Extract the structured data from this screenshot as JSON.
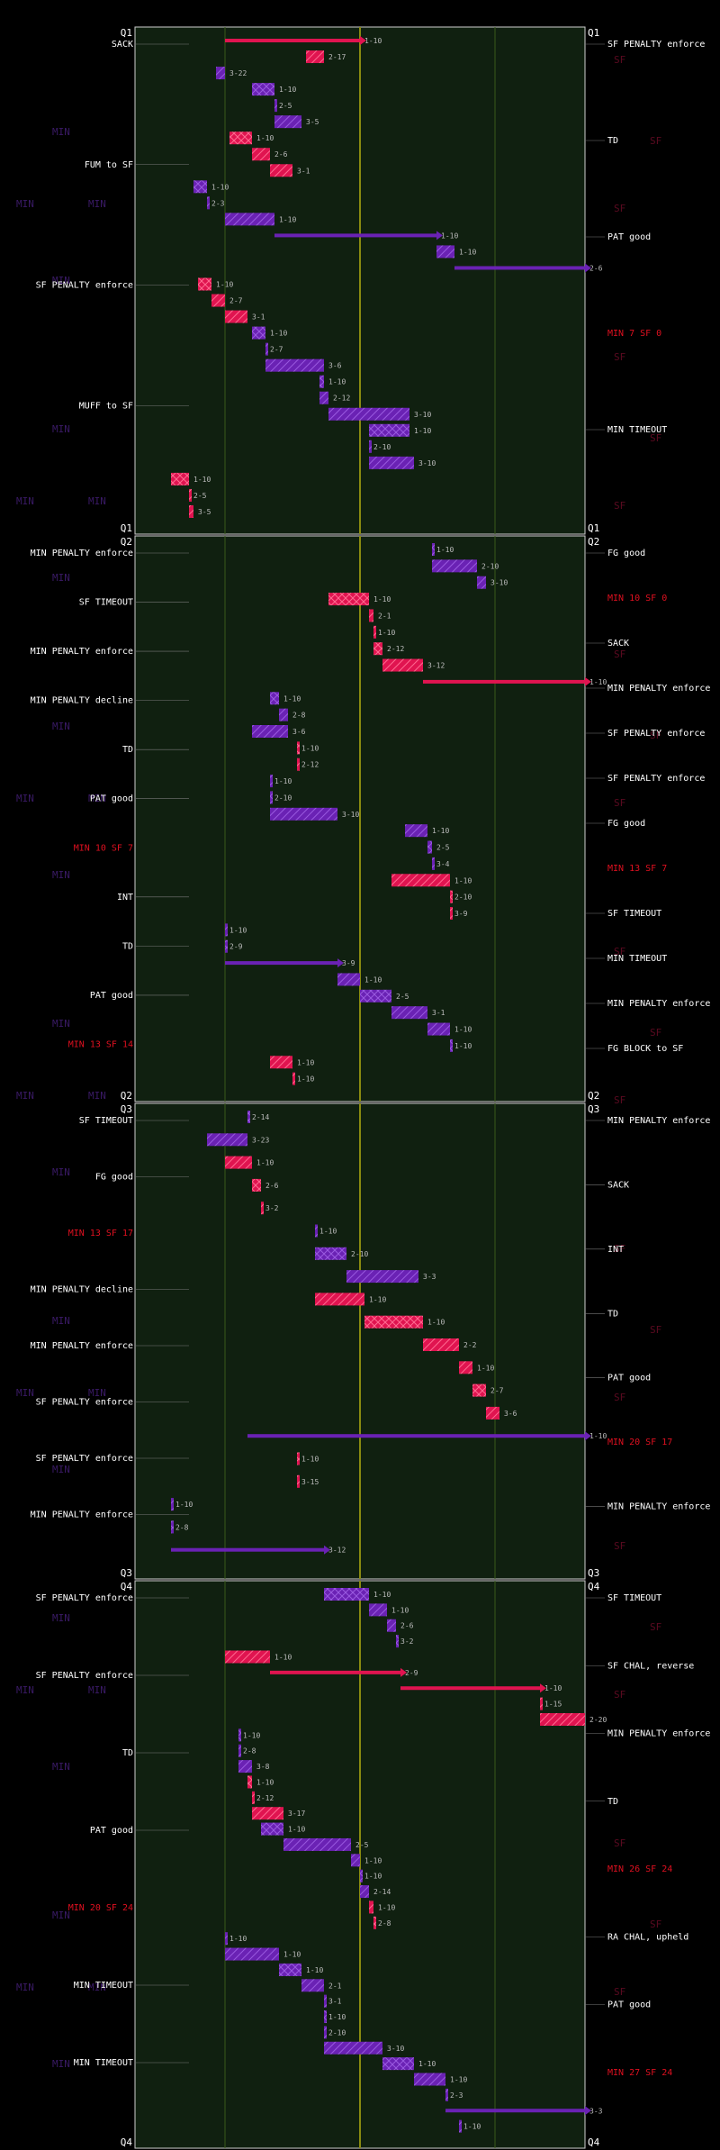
{
  "colors": {
    "background": "#000000",
    "field": "#102010",
    "min": "#6a22b4",
    "sf": "#e01450",
    "min_dim": "#3a1a66",
    "sf_dim": "#7a1030",
    "midfield_line": "#8a8a10",
    "yard_line": "#3a5a1a",
    "border": "#cfcfcf",
    "label": "#ffffff",
    "score_red": "#e01020",
    "ghost_min": "#3a1a66",
    "ghost_sf": "#5a0a20"
  },
  "quarters": [
    "Q1",
    "Q2",
    "Q3",
    "Q4"
  ],
  "ghost_labels": {
    "min": "MIN",
    "sf": "SF"
  },
  "events": [
    {
      "q": 0,
      "side": "left",
      "text": "SACK"
    },
    {
      "q": 0,
      "side": "left",
      "text": "FUM to SF"
    },
    {
      "q": 0,
      "side": "left",
      "text": "SF PENALTY enforce"
    },
    {
      "q": 0,
      "side": "right",
      "text": "SF PENALTY enforce"
    },
    {
      "q": 0,
      "side": "right",
      "text": "TD"
    },
    {
      "q": 0,
      "side": "right",
      "text": "PAT good"
    },
    {
      "q": 0,
      "side": "right",
      "text": "MIN 7 SF 0",
      "score": true
    },
    {
      "q": 0,
      "side": "left",
      "text": "MUFF to SF"
    },
    {
      "q": 0,
      "side": "right",
      "text": "MIN TIMEOUT"
    },
    {
      "q": 1,
      "side": "right",
      "text": "FG good"
    },
    {
      "q": 1,
      "side": "right",
      "text": "MIN 10 SF 0",
      "score": true
    },
    {
      "q": 1,
      "side": "left",
      "text": "MIN PENALTY enforce"
    },
    {
      "q": 1,
      "side": "left",
      "text": "SF TIMEOUT"
    },
    {
      "q": 1,
      "side": "left",
      "text": "MIN PENALTY enforce"
    },
    {
      "q": 1,
      "side": "left",
      "text": "MIN PENALTY decline"
    },
    {
      "q": 1,
      "side": "left",
      "text": "TD"
    },
    {
      "q": 1,
      "side": "left",
      "text": "PAT good"
    },
    {
      "q": 1,
      "side": "left",
      "text": "MIN 10 SF 7",
      "score": true
    },
    {
      "q": 1,
      "side": "right",
      "text": "SACK"
    },
    {
      "q": 1,
      "side": "right",
      "text": "MIN PENALTY enforce"
    },
    {
      "q": 1,
      "side": "left",
      "text": "INT"
    },
    {
      "q": 1,
      "side": "right",
      "text": "SF PENALTY enforce"
    },
    {
      "q": 1,
      "side": "right",
      "text": "SF PENALTY enforce"
    },
    {
      "q": 1,
      "side": "right",
      "text": "FG good"
    },
    {
      "q": 1,
      "side": "right",
      "text": "MIN 13 SF 7",
      "score": true
    },
    {
      "q": 1,
      "side": "right",
      "text": "SF TIMEOUT"
    },
    {
      "q": 1,
      "side": "right",
      "text": "MIN TIMEOUT"
    },
    {
      "q": 1,
      "side": "right",
      "text": "MIN PENALTY enforce"
    },
    {
      "q": 1,
      "side": "right",
      "text": "FG BLOCK to SF"
    },
    {
      "q": 1,
      "side": "left",
      "text": "TD"
    },
    {
      "q": 1,
      "side": "left",
      "text": "PAT good"
    },
    {
      "q": 1,
      "side": "left",
      "text": "MIN 13 SF 14",
      "score": true
    },
    {
      "q": 2,
      "side": "right",
      "text": "MIN PENALTY enforce"
    },
    {
      "q": 2,
      "side": "right",
      "text": "SACK"
    },
    {
      "q": 2,
      "side": "right",
      "text": "INT"
    },
    {
      "q": 2,
      "side": "left",
      "text": "SF TIMEOUT"
    },
    {
      "q": 2,
      "side": "left",
      "text": "FG good"
    },
    {
      "q": 2,
      "side": "left",
      "text": "MIN 13 SF 17",
      "score": true
    },
    {
      "q": 2,
      "side": "right",
      "text": "TD"
    },
    {
      "q": 2,
      "side": "right",
      "text": "PAT good"
    },
    {
      "q": 2,
      "side": "right",
      "text": "MIN 20 SF 17",
      "score": true
    },
    {
      "q": 2,
      "side": "left",
      "text": "MIN PENALTY decline"
    },
    {
      "q": 2,
      "side": "left",
      "text": "MIN PENALTY enforce"
    },
    {
      "q": 2,
      "side": "left",
      "text": "SF PENALTY enforce"
    },
    {
      "q": 2,
      "side": "left",
      "text": "SF PENALTY enforce"
    },
    {
      "q": 2,
      "side": "left",
      "text": "MIN PENALTY enforce"
    },
    {
      "q": 2,
      "side": "right",
      "text": "MIN PENALTY enforce"
    },
    {
      "q": 3,
      "side": "left",
      "text": "SF PENALTY enforce"
    },
    {
      "q": 3,
      "side": "left",
      "text": "SF PENALTY enforce"
    },
    {
      "q": 3,
      "side": "left",
      "text": "TD"
    },
    {
      "q": 3,
      "side": "left",
      "text": "PAT good"
    },
    {
      "q": 3,
      "side": "left",
      "text": "MIN 20 SF 24",
      "score": true
    },
    {
      "q": 3,
      "side": "right",
      "text": "SF TIMEOUT"
    },
    {
      "q": 3,
      "side": "right",
      "text": "SF CHAL, reverse"
    },
    {
      "q": 3,
      "side": "right",
      "text": "MIN PENALTY enforce"
    },
    {
      "q": 3,
      "side": "left",
      "text": "MIN TIMEOUT"
    },
    {
      "q": 3,
      "side": "left",
      "text": "MIN TIMEOUT"
    },
    {
      "q": 3,
      "side": "right",
      "text": "TD"
    },
    {
      "q": 3,
      "side": "right",
      "text": "MIN 26 SF 24",
      "score": true
    },
    {
      "q": 3,
      "side": "right",
      "text": "RA CHAL, upheld"
    },
    {
      "q": 3,
      "side": "right",
      "text": "PAT good"
    },
    {
      "q": 3,
      "side": "right",
      "text": "MIN 27 SF 24",
      "score": true
    }
  ],
  "plays": [
    {
      "q": 0,
      "team": "sf",
      "from": 20,
      "to": 50,
      "dd": "1-10"
    },
    {
      "q": 0,
      "team": "sf",
      "from": 42,
      "to": 38,
      "dd": "2-17"
    },
    {
      "q": 0,
      "team": "min",
      "from": 18,
      "to": 20,
      "dd": "3-22"
    },
    {
      "q": 0,
      "team": "min",
      "from": 26,
      "to": 31,
      "dd": "1-10"
    },
    {
      "q": 0,
      "team": "min",
      "from": 31,
      "to": 31,
      "dd": "2-5"
    },
    {
      "q": 0,
      "team": "min",
      "from": 31,
      "to": 37,
      "dd": "3-5"
    },
    {
      "q": 0,
      "team": "sf",
      "from": 21,
      "to": 26,
      "dd": "1-10"
    },
    {
      "q": 0,
      "team": "sf",
      "from": 26,
      "to": 30,
      "dd": "2-6"
    },
    {
      "q": 0,
      "team": "sf",
      "from": 30,
      "to": 35,
      "dd": "3-1"
    },
    {
      "q": 0,
      "team": "min",
      "from": 13,
      "to": 16,
      "dd": "1-10"
    },
    {
      "q": 0,
      "team": "min",
      "from": 16,
      "to": 16,
      "dd": "2-3"
    },
    {
      "q": 0,
      "team": "min",
      "from": 20,
      "to": 31,
      "dd": "1-10"
    },
    {
      "q": 0,
      "team": "min",
      "from": 31,
      "to": 67,
      "dd": "1-10"
    },
    {
      "q": 0,
      "team": "min",
      "from": 67,
      "to": 71,
      "dd": "1-10"
    },
    {
      "q": 0,
      "team": "min",
      "from": 71,
      "to": 100,
      "dd": "2-6"
    },
    {
      "q": 0,
      "team": "sf",
      "from": 14,
      "to": 17,
      "dd": "1-10"
    },
    {
      "q": 0,
      "team": "sf",
      "from": 17,
      "to": 20,
      "dd": "2-7"
    },
    {
      "q": 0,
      "team": "sf",
      "from": 20,
      "to": 25,
      "dd": "3-1"
    },
    {
      "q": 0,
      "team": "min",
      "from": 26,
      "to": 29,
      "dd": "1-10"
    },
    {
      "q": 0,
      "team": "min",
      "from": 29,
      "to": 29,
      "dd": "2-7"
    },
    {
      "q": 0,
      "team": "min",
      "from": 29,
      "to": 42,
      "dd": "3-6"
    },
    {
      "q": 0,
      "team": "min",
      "from": 42,
      "to": 41,
      "dd": "1-10"
    },
    {
      "q": 0,
      "team": "min",
      "from": 41,
      "to": 43,
      "dd": "2-12"
    },
    {
      "q": 0,
      "team": "min",
      "from": 43,
      "to": 61,
      "dd": "3-10"
    },
    {
      "q": 0,
      "team": "min",
      "from": 61,
      "to": 52,
      "dd": "1-10"
    },
    {
      "q": 0,
      "team": "min",
      "from": 52,
      "to": 52,
      "dd": "2-10"
    },
    {
      "q": 0,
      "team": "min",
      "from": 52,
      "to": 62,
      "dd": "3-10"
    },
    {
      "q": 0,
      "team": "sf",
      "from": 8,
      "to": 12,
      "dd": "1-10"
    },
    {
      "q": 0,
      "team": "sf",
      "from": 12,
      "to": 12,
      "dd": "2-5"
    },
    {
      "q": 0,
      "team": "sf",
      "from": 12,
      "to": 13,
      "dd": "3-5"
    },
    {
      "q": 1,
      "team": "min",
      "from": 66,
      "to": 66,
      "dd": "1-10"
    },
    {
      "q": 1,
      "team": "min",
      "from": 66,
      "to": 76,
      "dd": "2-10"
    },
    {
      "q": 1,
      "team": "min",
      "from": 76,
      "to": 78,
      "dd": "3-10"
    },
    {
      "q": 1,
      "team": "sf",
      "from": 43,
      "to": 52,
      "dd": "1-10"
    },
    {
      "q": 1,
      "team": "sf",
      "from": 52,
      "to": 53,
      "dd": "2-1"
    },
    {
      "q": 1,
      "team": "sf",
      "from": 53,
      "to": 53,
      "dd": "1-10"
    },
    {
      "q": 1,
      "team": "sf",
      "from": 53,
      "to": 55,
      "dd": "2-12"
    },
    {
      "q": 1,
      "team": "sf",
      "from": 55,
      "to": 64,
      "dd": "3-12"
    },
    {
      "q": 1,
      "team": "sf",
      "from": 64,
      "to": 100,
      "dd": "1-10"
    },
    {
      "q": 1,
      "team": "min",
      "from": 30,
      "to": 32,
      "dd": "1-10"
    },
    {
      "q": 1,
      "team": "min",
      "from": 32,
      "to": 34,
      "dd": "2-8"
    },
    {
      "q": 1,
      "team": "min",
      "from": 34,
      "to": 26,
      "dd": "3-6"
    },
    {
      "q": 1,
      "team": "sf",
      "from": 36,
      "to": 36,
      "dd": "1-10"
    },
    {
      "q": 1,
      "team": "sf",
      "from": 36,
      "to": 36,
      "dd": "2-12"
    },
    {
      "q": 1,
      "team": "min",
      "from": 30,
      "to": 30,
      "dd": "1-10"
    },
    {
      "q": 1,
      "team": "min",
      "from": 30,
      "to": 30,
      "dd": "2-10"
    },
    {
      "q": 1,
      "team": "min",
      "from": 30,
      "to": 45,
      "dd": "3-10"
    },
    {
      "q": 1,
      "team": "min",
      "from": 60,
      "to": 65,
      "dd": "1-10"
    },
    {
      "q": 1,
      "team": "min",
      "from": 65,
      "to": 66,
      "dd": "2-5"
    },
    {
      "q": 1,
      "team": "min",
      "from": 66,
      "to": 66,
      "dd": "3-4"
    },
    {
      "q": 1,
      "team": "sf",
      "from": 57,
      "to": 70,
      "dd": "1-10"
    },
    {
      "q": 1,
      "team": "sf",
      "from": 70,
      "to": 70,
      "dd": "2-10"
    },
    {
      "q": 1,
      "team": "sf",
      "from": 70,
      "to": 70,
      "dd": "3-9"
    },
    {
      "q": 1,
      "team": "min",
      "from": 20,
      "to": 20,
      "dd": "1-10"
    },
    {
      "q": 1,
      "team": "min",
      "from": 20,
      "to": 20,
      "dd": "2-9"
    },
    {
      "q": 1,
      "team": "min",
      "from": 20,
      "to": 45,
      "dd": "3-9"
    },
    {
      "q": 1,
      "team": "min",
      "from": 45,
      "to": 50,
      "dd": "1-10"
    },
    {
      "q": 1,
      "team": "min",
      "from": 50,
      "to": 57,
      "dd": "2-5"
    },
    {
      "q": 1,
      "team": "min",
      "from": 57,
      "to": 65,
      "dd": "3-1"
    },
    {
      "q": 1,
      "team": "min",
      "from": 65,
      "to": 70,
      "dd": "1-10"
    },
    {
      "q": 1,
      "team": "min",
      "from": 70,
      "to": 70,
      "dd": "1-10"
    },
    {
      "q": 1,
      "team": "sf",
      "from": 30,
      "to": 35,
      "dd": "1-10"
    },
    {
      "q": 1,
      "team": "sf",
      "from": 35,
      "to": 35,
      "dd": "1-10"
    },
    {
      "q": 2,
      "team": "min",
      "from": 25,
      "to": 25,
      "dd": "2-14"
    },
    {
      "q": 2,
      "team": "min",
      "from": 25,
      "to": 16,
      "dd": "3-23"
    },
    {
      "q": 2,
      "team": "sf",
      "from": 20,
      "to": 26,
      "dd": "1-10"
    },
    {
      "q": 2,
      "team": "sf",
      "from": 26,
      "to": 28,
      "dd": "2-6"
    },
    {
      "q": 2,
      "team": "sf",
      "from": 28,
      "to": 28,
      "dd": "3-2"
    },
    {
      "q": 2,
      "team": "min",
      "from": 40,
      "to": 40,
      "dd": "1-10"
    },
    {
      "q": 2,
      "team": "min",
      "from": 40,
      "to": 47,
      "dd": "2-10"
    },
    {
      "q": 2,
      "team": "min",
      "from": 47,
      "to": 63,
      "dd": "3-3"
    },
    {
      "q": 2,
      "team": "sf",
      "from": 40,
      "to": 51,
      "dd": "1-10"
    },
    {
      "q": 2,
      "team": "sf",
      "from": 51,
      "to": 64,
      "dd": "1-10"
    },
    {
      "q": 2,
      "team": "sf",
      "from": 64,
      "to": 72,
      "dd": "2-2"
    },
    {
      "q": 2,
      "team": "sf",
      "from": 72,
      "to": 75,
      "dd": "1-10"
    },
    {
      "q": 2,
      "team": "sf",
      "from": 75,
      "to": 78,
      "dd": "2-7"
    },
    {
      "q": 2,
      "team": "sf",
      "from": 78,
      "to": 81,
      "dd": "3-6"
    },
    {
      "q": 2,
      "team": "min",
      "from": 25,
      "to": 100,
      "dd": "1-10"
    },
    {
      "q": 2,
      "team": "sf",
      "from": 36,
      "to": 36,
      "dd": "1-10"
    },
    {
      "q": 2,
      "team": "sf",
      "from": 36,
      "to": 36,
      "dd": "3-15"
    },
    {
      "q": 2,
      "team": "min",
      "from": 8,
      "to": 8,
      "dd": "1-10"
    },
    {
      "q": 2,
      "team": "min",
      "from": 8,
      "to": 8,
      "dd": "2-8"
    },
    {
      "q": 2,
      "team": "min",
      "from": 8,
      "to": 42,
      "dd": "3-12"
    },
    {
      "q": 3,
      "team": "min",
      "from": 42,
      "to": 52,
      "dd": "1-10"
    },
    {
      "q": 3,
      "team": "min",
      "from": 52,
      "to": 56,
      "dd": "1-10"
    },
    {
      "q": 3,
      "team": "min",
      "from": 56,
      "to": 58,
      "dd": "2-6"
    },
    {
      "q": 3,
      "team": "min",
      "from": 58,
      "to": 58,
      "dd": "3-2"
    },
    {
      "q": 3,
      "team": "sf",
      "from": 20,
      "to": 30,
      "dd": "1-10"
    },
    {
      "q": 3,
      "team": "sf",
      "from": 30,
      "to": 59,
      "dd": "2-9"
    },
    {
      "q": 3,
      "team": "sf",
      "from": 59,
      "to": 90,
      "dd": "1-10"
    },
    {
      "q": 3,
      "team": "sf",
      "from": 90,
      "to": 90,
      "dd": "1-15"
    },
    {
      "q": 3,
      "team": "sf",
      "from": 90,
      "to": 100,
      "dd": "2-20"
    },
    {
      "q": 3,
      "team": "min",
      "from": 23,
      "to": 23,
      "dd": "1-10"
    },
    {
      "q": 3,
      "team": "min",
      "from": 23,
      "to": 23,
      "dd": "2-8"
    },
    {
      "q": 3,
      "team": "min",
      "from": 23,
      "to": 26,
      "dd": "3-8"
    },
    {
      "q": 3,
      "team": "sf",
      "from": 25,
      "to": 26,
      "dd": "1-10"
    },
    {
      "q": 3,
      "team": "sf",
      "from": 26,
      "to": 26,
      "dd": "2-12"
    },
    {
      "q": 3,
      "team": "sf",
      "from": 26,
      "to": 33,
      "dd": "3-17"
    },
    {
      "q": 3,
      "team": "min",
      "from": 28,
      "to": 33,
      "dd": "1-10"
    },
    {
      "q": 3,
      "team": "min",
      "from": 33,
      "to": 48,
      "dd": "2-5"
    },
    {
      "q": 3,
      "team": "min",
      "from": 48,
      "to": 50,
      "dd": "1-10"
    },
    {
      "q": 3,
      "team": "min",
      "from": 50,
      "to": 50,
      "dd": "1-10"
    },
    {
      "q": 3,
      "team": "min",
      "from": 50,
      "to": 52,
      "dd": "2-14"
    },
    {
      "q": 3,
      "team": "sf",
      "from": 52,
      "to": 53,
      "dd": "1-10"
    },
    {
      "q": 3,
      "team": "sf",
      "from": 53,
      "to": 53,
      "dd": "2-8"
    },
    {
      "q": 3,
      "team": "min",
      "from": 20,
      "to": 20,
      "dd": "1-10"
    },
    {
      "q": 3,
      "team": "min",
      "from": 20,
      "to": 32,
      "dd": "1-10"
    },
    {
      "q": 3,
      "team": "min",
      "from": 32,
      "to": 37,
      "dd": "1-10"
    },
    {
      "q": 3,
      "team": "min",
      "from": 37,
      "to": 42,
      "dd": "2-1"
    },
    {
      "q": 3,
      "team": "min",
      "from": 42,
      "to": 42,
      "dd": "3-1"
    },
    {
      "q": 3,
      "team": "min",
      "from": 42,
      "to": 42,
      "dd": "1-10"
    },
    {
      "q": 3,
      "team": "min",
      "from": 42,
      "to": 42,
      "dd": "2-10"
    },
    {
      "q": 3,
      "team": "min",
      "from": 42,
      "to": 55,
      "dd": "3-10"
    },
    {
      "q": 3,
      "team": "min",
      "from": 55,
      "to": 62,
      "dd": "1-10"
    },
    {
      "q": 3,
      "team": "min",
      "from": 62,
      "to": 69,
      "dd": "1-10"
    },
    {
      "q": 3,
      "team": "min",
      "from": 69,
      "to": 69,
      "dd": "2-3"
    },
    {
      "q": 3,
      "team": "min",
      "from": 69,
      "to": 100,
      "dd": "3-3"
    },
    {
      "q": 3,
      "team": "min",
      "from": 72,
      "to": 72,
      "dd": "1-10"
    }
  ]
}
